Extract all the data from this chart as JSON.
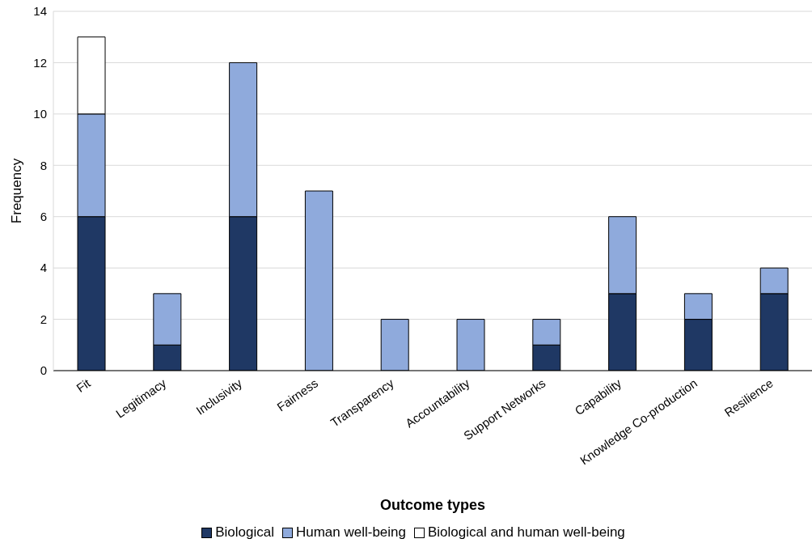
{
  "chart_data": {
    "type": "bar",
    "stacked": true,
    "xlabel": "Outcome types",
    "ylabel": "Frequency",
    "categories": [
      "Fit",
      "Legitimacy",
      "Inclusivity",
      "Fairness",
      "Transparency",
      "Accountability",
      "Support Networks",
      "Capability",
      "Knowledge Co-production",
      "Resilience"
    ],
    "series": [
      {
        "name": "Biological",
        "color": "#1f3864",
        "values": [
          6,
          1,
          6,
          0,
          0,
          0,
          1,
          3,
          2,
          3
        ]
      },
      {
        "name": "Human well-being",
        "color": "#8faadc",
        "values": [
          4,
          2,
          6,
          7,
          2,
          2,
          1,
          3,
          1,
          1
        ]
      },
      {
        "name": "Biological and human well-being",
        "color": "#ffffff",
        "values": [
          3,
          0,
          0,
          0,
          0,
          0,
          0,
          0,
          0,
          0
        ]
      }
    ],
    "ylim": [
      0,
      14
    ],
    "yticks": [
      0,
      2,
      4,
      6,
      8,
      10,
      12,
      14
    ],
    "grid": "y",
    "legend": "bottom"
  }
}
